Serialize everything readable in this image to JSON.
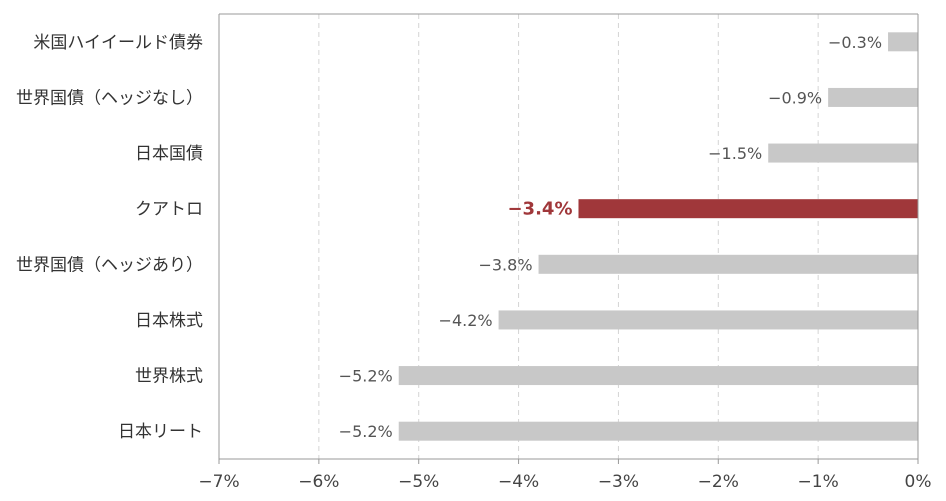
{
  "chart_data": {
    "type": "bar",
    "orientation": "horizontal",
    "categories": [
      "米国ハイイールド債券",
      "世界国債（ヘッジなし）",
      "日本国債",
      "クアトロ",
      "世界国債（ヘッジあり）",
      "日本株式",
      "世界株式",
      "日本リート"
    ],
    "values": [
      -0.3,
      -0.9,
      -1.5,
      -3.4,
      -3.8,
      -4.2,
      -5.2,
      -5.2
    ],
    "value_labels": [
      "−0.3%",
      "−0.9%",
      "−1.5%",
      "−3.4%",
      "−3.8%",
      "−4.2%",
      "−5.2%",
      "−5.2%"
    ],
    "highlight_index": 3,
    "xlim": [
      -7,
      0
    ],
    "x_ticks": [
      -7,
      -6,
      -5,
      -4,
      -3,
      -2,
      -1,
      0
    ],
    "x_tick_labels": [
      "−7%",
      "−6%",
      "−5%",
      "−4%",
      "−3%",
      "−2%",
      "−1%",
      "0%"
    ],
    "grid": "vertical dashed",
    "colors": {
      "bar": "#c8c8c8",
      "highlight": "#a0373a",
      "grid": "#d4d4d4",
      "axis": "#999999"
    },
    "title": "",
    "xlabel": "",
    "ylabel": ""
  }
}
